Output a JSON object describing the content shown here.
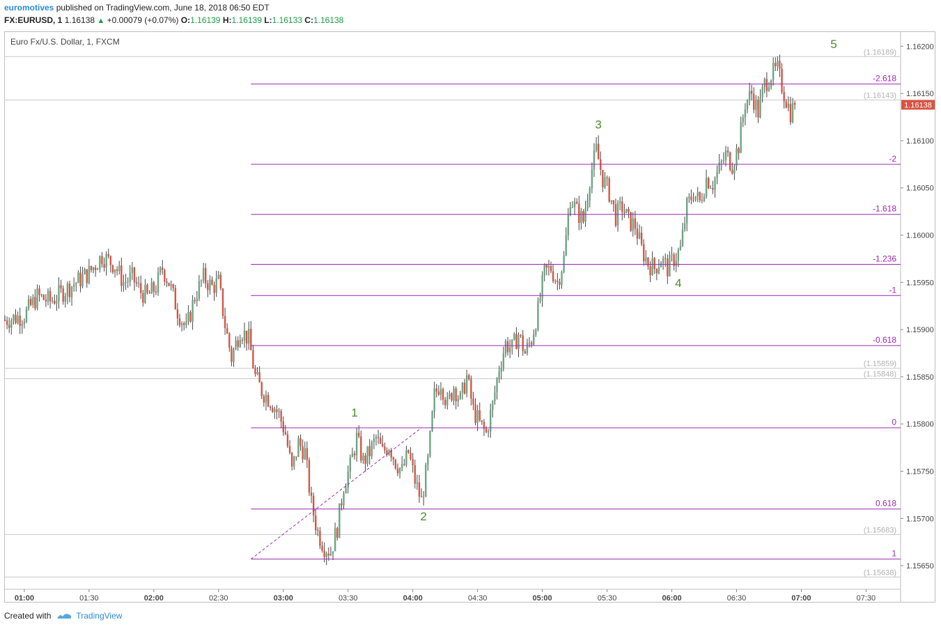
{
  "header": {
    "author": "euromotives",
    "published_text": "published on TradingView.com, June 18, 2018 06:50 EDT",
    "symbol_line": {
      "symbol": "FX:EURUSD, 1",
      "price": "1.16138",
      "change": "+0.00079 (+0.07%)",
      "o_label": "O:",
      "o_value": "1.16139",
      "h_label": "H:",
      "h_value": "1.16139",
      "l_label": "L:",
      "l_value": "1.16133",
      "c_label": "C:",
      "c_value": "1.16138"
    }
  },
  "chart_title": "Euro Fx/U.S. Dollar, 1, FXCM",
  "footer": {
    "created_with": "Created with",
    "brand": "TradingView"
  },
  "colors": {
    "up": "#6ba583",
    "down": "#d75442",
    "fib": "#9c27b0",
    "wave": "#4b8c2c",
    "price_tag": "#d75442"
  },
  "chart_data": {
    "type": "candlestick",
    "title": "Euro Fx/U.S. Dollar, 1, FXCM",
    "ylim": [
      1.15625,
      1.16215
    ],
    "y_ticks": [
      "1.15650",
      "1.15700",
      "1.15750",
      "1.15800",
      "1.15850",
      "1.15900",
      "1.15950",
      "1.16000",
      "1.16050",
      "1.16100",
      "1.16150",
      "1.16200"
    ],
    "x_ticks": [
      "01:00",
      "01:30",
      "02:00",
      "02:30",
      "03:00",
      "03:30",
      "04:00",
      "04:30",
      "05:00",
      "05:30",
      "06:00",
      "06:30",
      "07:00",
      "07:30"
    ],
    "x_tick_minutes": [
      60,
      90,
      120,
      150,
      180,
      210,
      240,
      270,
      300,
      330,
      360,
      390,
      420,
      450
    ],
    "xlim_minutes": [
      51,
      466
    ],
    "last_price": "1.16138",
    "last_price_value": 1.16138,
    "price_levels": [
      {
        "label": "(1.16189)",
        "value": 1.16189
      },
      {
        "label": "(1.16143)",
        "value": 1.16143
      },
      {
        "label": "(1.15859)",
        "value": 1.15859
      },
      {
        "label": "(1.15848)",
        "value": 1.15848
      },
      {
        "label": "(1.15683)",
        "value": 1.15683
      },
      {
        "label": "(1.15638)",
        "value": 1.15638
      }
    ],
    "fib_levels": [
      {
        "label": "-2.618",
        "value": 1.1616
      },
      {
        "label": "-2",
        "value": 1.16075
      },
      {
        "label": "-1.618",
        "value": 1.16022
      },
      {
        "label": "-1.236",
        "value": 1.15969
      },
      {
        "label": "-1",
        "value": 1.15936
      },
      {
        "label": "-0.618",
        "value": 1.15883
      },
      {
        "label": "0",
        "value": 1.15796
      },
      {
        "label": "0.618",
        "value": 1.1571
      },
      {
        "label": "1",
        "value": 1.15657
      }
    ],
    "fib_start_minute": 165,
    "fib_trend_line": {
      "from": [
        165,
        1.15657
      ],
      "to": [
        244,
        1.15796
      ]
    },
    "waves": [
      {
        "label": "1",
        "minute": 213,
        "value": 1.15808
      },
      {
        "label": "2",
        "minute": 245,
        "value": 1.15698
      },
      {
        "label": "3",
        "minute": 326,
        "value": 1.16113
      },
      {
        "label": "4",
        "minute": 363,
        "value": 1.15945
      },
      {
        "label": "5",
        "minute": 435,
        "value": 1.16198
      }
    ],
    "series_path": [
      [
        51,
        1.1591
      ],
      [
        60,
        1.15915
      ],
      [
        66,
        1.15935
      ],
      [
        72,
        1.1593
      ],
      [
        78,
        1.1594
      ],
      [
        84,
        1.1595
      ],
      [
        90,
        1.1596
      ],
      [
        96,
        1.15978
      ],
      [
        102,
        1.15968
      ],
      [
        106,
        1.1595
      ],
      [
        110,
        1.15955
      ],
      [
        114,
        1.1594
      ],
      [
        117,
        1.15935
      ],
      [
        121,
        1.15945
      ],
      [
        124,
        1.15965
      ],
      [
        127,
        1.1595
      ],
      [
        131,
        1.1592
      ],
      [
        135,
        1.159
      ],
      [
        139,
        1.15935
      ],
      [
        143,
        1.15955
      ],
      [
        147,
        1.15945
      ],
      [
        150,
        1.1595
      ],
      [
        153,
        1.15905
      ],
      [
        156,
        1.1587
      ],
      [
        160,
        1.159
      ],
      [
        164,
        1.1589
      ],
      [
        167,
        1.1585
      ],
      [
        170,
        1.15835
      ],
      [
        174,
        1.15825
      ],
      [
        178,
        1.1581
      ],
      [
        181,
        1.1579
      ],
      [
        184,
        1.1575
      ],
      [
        187,
        1.1578
      ],
      [
        190,
        1.1577
      ],
      [
        193,
        1.15715
      ],
      [
        196,
        1.15685
      ],
      [
        199,
        1.1567
      ],
      [
        202,
        1.15665
      ],
      [
        205,
        1.1569
      ],
      [
        208,
        1.15735
      ],
      [
        211,
        1.15755
      ],
      [
        214,
        1.15785
      ],
      [
        217,
        1.1576
      ],
      [
        220,
        1.1577
      ],
      [
        223,
        1.15785
      ],
      [
        226,
        1.1577
      ],
      [
        229,
        1.15778
      ],
      [
        232,
        1.1576
      ],
      [
        235,
        1.1575
      ],
      [
        238,
        1.1577
      ],
      [
        241,
        1.1574
      ],
      [
        244,
        1.15718
      ],
      [
        247,
        1.1576
      ],
      [
        250,
        1.1583
      ],
      [
        253,
        1.15845
      ],
      [
        256,
        1.1582
      ],
      [
        259,
        1.1584
      ],
      [
        262,
        1.15825
      ],
      [
        265,
        1.1585
      ],
      [
        268,
        1.15815
      ],
      [
        271,
        1.158
      ],
      [
        274,
        1.1579
      ],
      [
        277,
        1.1582
      ],
      [
        280,
        1.1586
      ],
      [
        283,
        1.15885
      ],
      [
        286,
        1.1588
      ],
      [
        289,
        1.15895
      ],
      [
        292,
        1.15875
      ],
      [
        295,
        1.1589
      ],
      [
        298,
        1.1592
      ],
      [
        301,
        1.1596
      ],
      [
        304,
        1.15965
      ],
      [
        307,
        1.1595
      ],
      [
        310,
        1.15975
      ],
      [
        313,
        1.1604
      ],
      [
        316,
        1.16025
      ],
      [
        319,
        1.16015
      ],
      [
        322,
        1.1606
      ],
      [
        325,
        1.1609
      ],
      [
        328,
        1.1606
      ],
      [
        331,
        1.16045
      ],
      [
        334,
        1.1602
      ],
      [
        337,
        1.1603
      ],
      [
        340,
        1.16015
      ],
      [
        343,
        1.1601
      ],
      [
        346,
        1.15985
      ],
      [
        349,
        1.1597
      ],
      [
        352,
        1.15965
      ],
      [
        355,
        1.15975
      ],
      [
        358,
        1.15965
      ],
      [
        361,
        1.15975
      ],
      [
        364,
        1.15985
      ],
      [
        367,
        1.1603
      ],
      [
        370,
        1.16045
      ],
      [
        373,
        1.16035
      ],
      [
        376,
        1.1606
      ],
      [
        379,
        1.16055
      ],
      [
        382,
        1.1607
      ],
      [
        385,
        1.16085
      ],
      [
        388,
        1.16075
      ],
      [
        391,
        1.16095
      ],
      [
        394,
        1.1614
      ],
      [
        397,
        1.1615
      ],
      [
        400,
        1.1613
      ],
      [
        403,
        1.1616
      ],
      [
        406,
        1.1617
      ],
      [
        409,
        1.16175
      ],
      [
        412,
        1.1615
      ],
      [
        415,
        1.1613
      ],
      [
        417,
        1.16138
      ]
    ]
  }
}
